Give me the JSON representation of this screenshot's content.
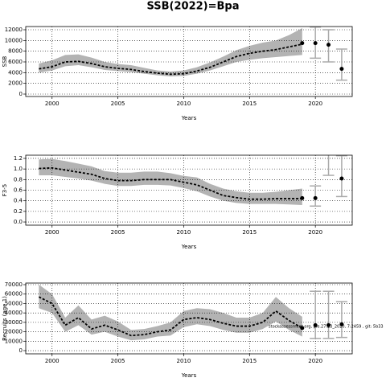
{
  "title": "SSB(2022)=Bpa",
  "chart_data": [
    {
      "type": "line",
      "ylabel": "SSB",
      "xlabel": "Years",
      "x": [
        1999,
        2000,
        2001,
        2002,
        2003,
        2004,
        2005,
        2006,
        2007,
        2008,
        2009,
        2010,
        2011,
        2012,
        2013,
        2014,
        2015,
        2016,
        2017,
        2018,
        2019
      ],
      "median": [
        4700,
        5100,
        6000,
        6100,
        5700,
        5100,
        4800,
        4600,
        4200,
        3900,
        3700,
        3800,
        4300,
        5000,
        6000,
        7000,
        7600,
        8000,
        8300,
        8800,
        9300
      ],
      "low": [
        4000,
        4400,
        5200,
        5400,
        5000,
        4500,
        4300,
        4100,
        3800,
        3500,
        3300,
        3400,
        3800,
        4400,
        5200,
        6000,
        6400,
        6700,
        6900,
        7100,
        7300
      ],
      "high": [
        5700,
        6300,
        7300,
        7400,
        6800,
        6000,
        5600,
        5400,
        4900,
        4400,
        4200,
        4400,
        5000,
        5900,
        7000,
        8200,
        9000,
        9600,
        10000,
        11000,
        12300
      ],
      "points": {
        "x": [
          2019,
          2020,
          2021,
          2022
        ],
        "values": [
          9500,
          9500,
          9200,
          4700
        ]
      },
      "error_bars": {
        "x": [
          2020,
          2021,
          2022
        ],
        "low": [
          6700,
          6000,
          2600
        ],
        "high": [
          12500,
          12000,
          8400
        ]
      },
      "color": "#000000",
      "band_color": "#b3b3b3",
      "errorbar_color": "#aaaaaa",
      "xlim": [
        1998,
        2022.8
      ],
      "xticks": [
        2000,
        2005,
        2010,
        2015,
        2020
      ],
      "ylim": [
        -450,
        12600
      ],
      "yticks": [
        0,
        2000,
        4000,
        6000,
        8000,
        10000,
        12000
      ],
      "grid": true
    },
    {
      "type": "line",
      "ylabel": "F3-5",
      "xlabel": "Years",
      "x": [
        1999,
        2000,
        2001,
        2002,
        2003,
        2004,
        2005,
        2006,
        2007,
        2008,
        2009,
        2010,
        2011,
        2012,
        2013,
        2014,
        2015,
        2016,
        2017,
        2018,
        2019
      ],
      "median": [
        1.01,
        1.02,
        0.98,
        0.94,
        0.9,
        0.82,
        0.78,
        0.78,
        0.8,
        0.8,
        0.8,
        0.75,
        0.7,
        0.6,
        0.5,
        0.46,
        0.43,
        0.43,
        0.44,
        0.44,
        0.44
      ],
      "low": [
        0.88,
        0.88,
        0.85,
        0.82,
        0.78,
        0.72,
        0.68,
        0.68,
        0.7,
        0.7,
        0.69,
        0.64,
        0.58,
        0.48,
        0.4,
        0.36,
        0.34,
        0.34,
        0.34,
        0.33,
        0.32
      ],
      "high": [
        1.18,
        1.19,
        1.15,
        1.1,
        1.05,
        0.96,
        0.93,
        0.93,
        0.95,
        0.95,
        0.92,
        0.87,
        0.84,
        0.72,
        0.63,
        0.58,
        0.55,
        0.55,
        0.57,
        0.6,
        0.63
      ],
      "points": {
        "x": [
          2019,
          2020,
          2022
        ],
        "values": [
          0.45,
          0.45,
          0.82
        ]
      },
      "error_bars": {
        "x": [
          2020,
          2021,
          2022
        ],
        "low": [
          0.3,
          0.88,
          0.48
        ],
        "high": [
          0.68,
          1.3,
          1.25
        ]
      },
      "color": "#000000",
      "band_color": "#b3b3b3",
      "errorbar_color": "#aaaaaa",
      "xlim": [
        1998,
        2022.8
      ],
      "xticks": [
        2000,
        2005,
        2010,
        2015,
        2020
      ],
      "ylim": [
        -0.06,
        1.26
      ],
      "yticks": [
        {
          "value": 0,
          "label": "0.0"
        },
        0.2,
        0.4,
        0.6,
        0.8,
        {
          "value": 1,
          "label": "1.0"
        },
        1.2
      ],
      "grid": true
    },
    {
      "type": "line",
      "ylabel": "Recruits (age 1)",
      "xlabel": "Years",
      "annotation": "stockassessment.org, ple.27.23_2020, 7:2459 , git: 5b33",
      "x": [
        1999,
        2000,
        2001,
        2002,
        2003,
        2004,
        2005,
        2006,
        2007,
        2008,
        2009,
        2010,
        2011,
        2012,
        2013,
        2014,
        2015,
        2016,
        2017,
        2018,
        2019
      ],
      "median": [
        57000,
        50000,
        27000,
        35000,
        23000,
        27000,
        22000,
        16000,
        17000,
        20000,
        22000,
        33000,
        35000,
        33000,
        29000,
        26000,
        26000,
        30000,
        42000,
        32000,
        24000
      ],
      "low": [
        45000,
        40000,
        20000,
        27000,
        17000,
        20000,
        15000,
        11000,
        12000,
        15000,
        16000,
        25000,
        28000,
        26000,
        22000,
        19000,
        19000,
        23000,
        31000,
        22000,
        15000
      ],
      "high": [
        70000,
        60000,
        35000,
        48000,
        33000,
        37000,
        31000,
        22000,
        23000,
        26000,
        30000,
        42000,
        45000,
        44000,
        40000,
        35000,
        35000,
        40000,
        57000,
        45000,
        36000
      ],
      "points": {
        "x": [
          2019,
          2020,
          2021,
          2022
        ],
        "values": [
          24000,
          27000,
          27000,
          28000
        ]
      },
      "error_bars": {
        "x": [
          2020,
          2021,
          2022
        ],
        "low": [
          13000,
          13000,
          14000
        ],
        "high": [
          63000,
          63000,
          52000
        ]
      },
      "color": "#000000",
      "band_color": "#b3b3b3",
      "errorbar_color": "#aaaaaa",
      "xlim": [
        1998,
        2022.8
      ],
      "xticks": [
        2000,
        2005,
        2010,
        2015,
        2020
      ],
      "ylim": [
        -3400,
        71700
      ],
      "yticks": [
        0,
        10000,
        20000,
        30000,
        40000,
        50000,
        60000,
        70000
      ],
      "grid": true
    }
  ]
}
